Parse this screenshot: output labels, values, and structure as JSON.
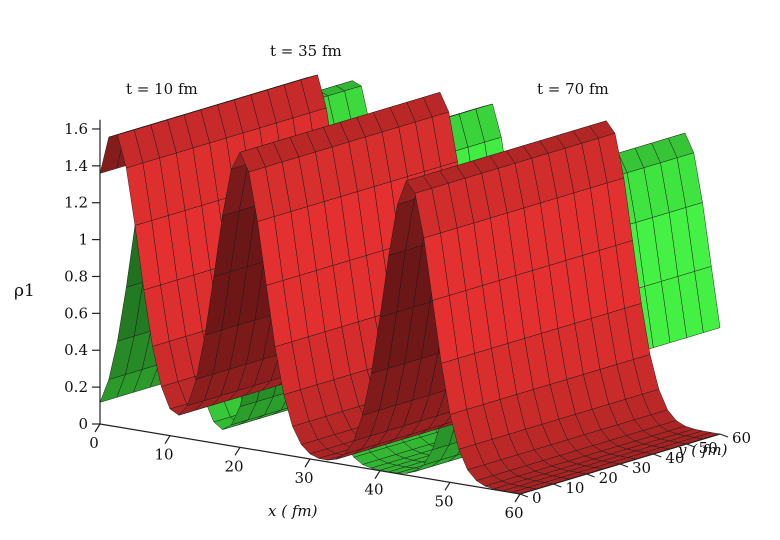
{
  "chart_data": {
    "type": "surface",
    "zlabel": "ρ1",
    "xlabel": "x ( fm)",
    "ylabel": "y ( fm)",
    "xlim": [
      0,
      60
    ],
    "ylim": [
      0,
      60
    ],
    "zlim": [
      0,
      1.65
    ],
    "xticks": [
      "0",
      "10",
      "20",
      "30",
      "40",
      "50",
      "60"
    ],
    "yticks": [
      "0",
      "10",
      "20",
      "30",
      "40",
      "50",
      "60"
    ],
    "zticks": [
      "0",
      "0.2",
      "0.4",
      "0.6",
      "0.8",
      "1",
      "1.2",
      "1.4",
      "1.6"
    ],
    "annotations": [
      "t = 10 fm",
      "t = 35 fm",
      "t = 70 fm"
    ],
    "peak_height": 1.6,
    "series": [
      {
        "name": "",
        "color": "#c62a2a",
        "x_peaks": [
          2,
          20,
          44
        ]
      },
      {
        "name": "",
        "color": "#3bd23b",
        "x_peaks": [
          8,
          27,
          55
        ]
      }
    ],
    "pulse_width_fm": 3.5
  }
}
